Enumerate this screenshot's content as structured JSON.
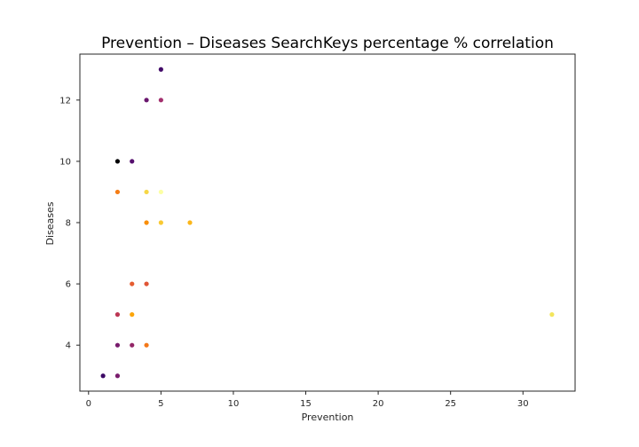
{
  "chart_data": {
    "type": "scatter",
    "title": "Prevention – Diseases SearchKeys percentage % correlation",
    "xlabel": "Prevention",
    "ylabel": "Diseases",
    "xlim": [
      -0.6,
      33.6
    ],
    "ylim": [
      2.5,
      13.5
    ],
    "xticks": [
      0,
      5,
      10,
      15,
      20,
      25,
      30
    ],
    "yticks": [
      4,
      6,
      8,
      10,
      12
    ],
    "grid": false,
    "legend": false,
    "points": [
      {
        "x": 5,
        "y": 13,
        "color": "#420a68"
      },
      {
        "x": 4,
        "y": 12,
        "color": "#6a176e"
      },
      {
        "x": 5,
        "y": 12,
        "color": "#a3306e"
      },
      {
        "x": 2,
        "y": 10,
        "color": "#000004"
      },
      {
        "x": 3,
        "y": 10,
        "color": "#56106e"
      },
      {
        "x": 2,
        "y": 9,
        "color": "#f57d15"
      },
      {
        "x": 4,
        "y": 9,
        "color": "#f6d746"
      },
      {
        "x": 5,
        "y": 9,
        "color": "#fcffa4"
      },
      {
        "x": 4,
        "y": 8,
        "color": "#f98e09"
      },
      {
        "x": 5,
        "y": 8,
        "color": "#f9c932"
      },
      {
        "x": 7,
        "y": 8,
        "color": "#fbb61a"
      },
      {
        "x": 3,
        "y": 6,
        "color": "#e55c30"
      },
      {
        "x": 4,
        "y": 6,
        "color": "#e05536"
      },
      {
        "x": 2,
        "y": 5,
        "color": "#bc3754"
      },
      {
        "x": 3,
        "y": 5,
        "color": "#fca50a"
      },
      {
        "x": 32,
        "y": 5,
        "color": "#f3e55c"
      },
      {
        "x": 2,
        "y": 4,
        "color": "#781c6d"
      },
      {
        "x": 3,
        "y": 4,
        "color": "#932667"
      },
      {
        "x": 4,
        "y": 4,
        "color": "#f37819"
      },
      {
        "x": 1,
        "y": 3,
        "color": "#3c0965"
      },
      {
        "x": 2,
        "y": 3,
        "color": "#7a1d6d"
      }
    ]
  }
}
